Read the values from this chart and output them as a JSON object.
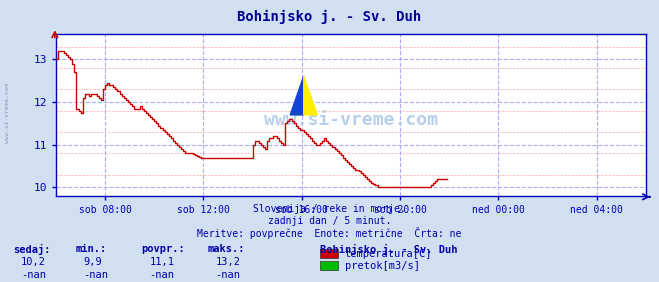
{
  "title": "Bohinjsko j. - Sv. Duh",
  "title_color": "#000099",
  "bg_color": "#d0e0f0",
  "plot_bg_color": "#ffffff",
  "grid_color_major": "#aaaaff",
  "grid_color_minor": "#ffaaaa",
  "axis_color": "#0000bb",
  "text_color": "#0000aa",
  "temp_color": "#cc0000",
  "flow_color": "#00bb00",
  "xmin": 0,
  "xmax": 288,
  "ymin": 9.8,
  "ymax": 13.6,
  "yticks": [
    10,
    11,
    12,
    13
  ],
  "xtick_positions": [
    24,
    72,
    120,
    168,
    216,
    264
  ],
  "xtick_labels": [
    "sob 08:00",
    "sob 12:00",
    "sob 16:00",
    "sob 20:00",
    "ned 00:00",
    "ned 04:00"
  ],
  "watermark": "www.si-vreme.com",
  "footer_line1": "Slovenija / reke in morje.",
  "footer_line2": "zadnji dan / 5 minut.",
  "footer_line3": "Meritve: povprečne  Enote: metrične  Črta: ne",
  "legend_title": "Bohinjsko j. - Sv. Duh",
  "legend_items": [
    {
      "label": "temperatura[C]",
      "color": "#cc0000"
    },
    {
      "label": "pretok[m3/s]",
      "color": "#00bb00"
    }
  ],
  "stats_headers": [
    "sedaj:",
    "min.:",
    "povpr.:",
    "maks.:"
  ],
  "stats_temp": [
    "10,2",
    "9,9",
    "11,1",
    "13,2"
  ],
  "stats_flow": [
    "-nan",
    "-nan",
    "-nan",
    "-nan"
  ],
  "temperature_data": [
    13.0,
    13.2,
    13.2,
    13.2,
    13.15,
    13.1,
    13.05,
    13.0,
    12.9,
    12.7,
    11.85,
    11.8,
    11.75,
    12.1,
    12.2,
    12.2,
    12.15,
    12.2,
    12.2,
    12.2,
    12.15,
    12.1,
    12.05,
    12.3,
    12.4,
    12.45,
    12.4,
    12.4,
    12.35,
    12.3,
    12.25,
    12.2,
    12.15,
    12.1,
    12.05,
    12.0,
    11.95,
    11.9,
    11.85,
    11.85,
    11.85,
    11.9,
    11.85,
    11.8,
    11.75,
    11.7,
    11.65,
    11.6,
    11.55,
    11.5,
    11.45,
    11.4,
    11.35,
    11.3,
    11.25,
    11.2,
    11.15,
    11.1,
    11.05,
    11.0,
    10.95,
    10.9,
    10.85,
    10.8,
    10.8,
    10.8,
    10.8,
    10.78,
    10.76,
    10.74,
    10.72,
    10.7,
    10.7,
    10.7,
    10.7,
    10.7,
    10.7,
    10.7,
    10.7,
    10.7,
    10.7,
    10.7,
    10.7,
    10.7,
    10.7,
    10.7,
    10.7,
    10.7,
    10.7,
    10.7,
    10.7,
    10.7,
    10.7,
    10.7,
    10.7,
    10.7,
    11.0,
    11.1,
    11.1,
    11.05,
    11.0,
    10.95,
    10.9,
    11.1,
    11.15,
    11.15,
    11.2,
    11.2,
    11.15,
    11.1,
    11.05,
    11.0,
    11.5,
    11.55,
    11.6,
    11.55,
    11.5,
    11.45,
    11.4,
    11.35,
    11.35,
    11.3,
    11.25,
    11.2,
    11.15,
    11.1,
    11.05,
    11.0,
    11.0,
    11.05,
    11.1,
    11.15,
    11.1,
    11.05,
    11.0,
    10.95,
    10.9,
    10.85,
    10.8,
    10.75,
    10.7,
    10.65,
    10.6,
    10.55,
    10.5,
    10.45,
    10.4,
    10.4,
    10.38,
    10.35,
    10.3,
    10.25,
    10.2,
    10.15,
    10.1,
    10.08,
    10.05,
    10.0,
    10.0,
    10.0,
    10.0,
    10.0,
    10.0,
    10.0,
    10.0,
    10.0,
    10.0,
    10.0,
    10.0,
    10.0,
    10.0,
    10.0,
    10.0,
    10.0,
    10.0,
    10.0,
    10.0,
    10.0,
    10.0,
    10.0,
    10.0,
    10.0,
    10.0,
    10.05,
    10.1,
    10.15,
    10.2,
    10.2,
    10.2,
    10.2,
    10.2,
    10.2
  ]
}
